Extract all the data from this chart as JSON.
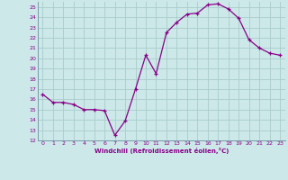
{
  "x": [
    0,
    1,
    2,
    3,
    4,
    5,
    6,
    7,
    8,
    9,
    10,
    11,
    12,
    13,
    14,
    15,
    16,
    17,
    18,
    19,
    20,
    21,
    22,
    23
  ],
  "y": [
    16.5,
    15.7,
    15.7,
    15.5,
    15.0,
    15.0,
    14.9,
    12.5,
    13.9,
    17.0,
    20.3,
    18.5,
    22.5,
    23.5,
    24.3,
    24.4,
    25.2,
    25.3,
    24.8,
    23.9,
    21.8,
    21.0,
    20.5,
    20.3
  ],
  "xlabel": "Windchill (Refroidissement éolien,°C)",
  "ylim": [
    12,
    25.5
  ],
  "xlim": [
    -0.5,
    23.5
  ],
  "yticks": [
    12,
    13,
    14,
    15,
    16,
    17,
    18,
    19,
    20,
    21,
    22,
    23,
    24,
    25
  ],
  "xticks": [
    0,
    1,
    2,
    3,
    4,
    5,
    6,
    7,
    8,
    9,
    10,
    11,
    12,
    13,
    14,
    15,
    16,
    17,
    18,
    19,
    20,
    21,
    22,
    23
  ],
  "line_color": "#880088",
  "marker": "+",
  "bg_color": "#cce8e8",
  "grid_color": "#aacccc",
  "tick_color": "#880088",
  "label_color": "#880088"
}
